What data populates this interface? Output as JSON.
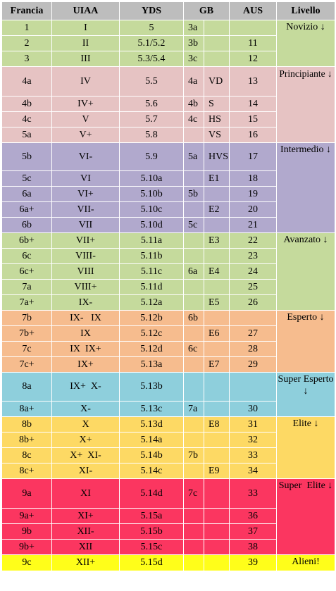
{
  "headers": [
    "Francia",
    "UIAA",
    "YDS",
    "GB",
    "",
    "AUS",
    "Livello"
  ],
  "colors": {
    "header": "#bdbdbd",
    "novizio": "#c5da9c",
    "principiante": "#e6c3c3",
    "intermedio": "#b1a9cd",
    "avanzato": "#c5da9c",
    "esperto": "#f6bc8e",
    "super_esperto": "#8ecfdc",
    "elite": "#fdd964",
    "super_elite": "#fb3660",
    "alieni": "#fffe1a"
  },
  "groups": [
    {
      "key": "novizio",
      "level": "Novizio ↓",
      "rows": [
        {
          "fr": "1",
          "uiaa": "I",
          "yds": "5",
          "gb": "3a",
          "gb2": "",
          "aus": ""
        },
        {
          "fr": "2",
          "uiaa": "II",
          "yds": "5.1/5.2",
          "gb": "3b",
          "gb2": "",
          "aus": "11"
        },
        {
          "fr": "3",
          "uiaa": "III",
          "yds": "5.3/5.4",
          "gb": "3c",
          "gb2": "",
          "aus": "12"
        }
      ]
    },
    {
      "key": "principiante",
      "level": "Principiante ↓",
      "rows": [
        {
          "fr": "4a",
          "uiaa": "IV",
          "yds": "5.5",
          "gb": "4a",
          "gb2": "VD",
          "aus": "13",
          "tall": true
        },
        {
          "fr": "4b",
          "uiaa": "IV+",
          "yds": "5.6",
          "gb": "4b",
          "gb2": "S",
          "aus": "14"
        },
        {
          "fr": "4c",
          "uiaa": "V",
          "yds": "5.7",
          "gb": "4c",
          "gb2": "HS",
          "aus": "15"
        },
        {
          "fr": "5a",
          "uiaa": "V+",
          "yds": "5.8",
          "gb": "",
          "gb2": "VS",
          "aus": "16"
        }
      ]
    },
    {
      "key": "intermedio",
      "level": "Intermedio ↓",
      "rows": [
        {
          "fr": "5b",
          "uiaa": "VI-",
          "yds": "5.9",
          "gb": "5a",
          "gb2": "HVS",
          "aus": "17",
          "tall": true
        },
        {
          "fr": "5c",
          "uiaa": "VI",
          "yds": "5.10a",
          "gb": "",
          "gb2": "E1",
          "aus": "18"
        },
        {
          "fr": "6a",
          "uiaa": "VI+",
          "yds": "5.10b",
          "gb": "5b",
          "gb2": "",
          "aus": "19"
        },
        {
          "fr": "6a+",
          "uiaa": "VII-",
          "yds": "5.10c",
          "gb": "",
          "gb2": "E2",
          "aus": "20"
        },
        {
          "fr": "6b",
          "uiaa": "VII",
          "yds": "5.10d",
          "gb": "5c",
          "gb2": "",
          "aus": "21"
        }
      ]
    },
    {
      "key": "avanzato",
      "level": "Avanzato ↓",
      "rows": [
        {
          "fr": "6b+",
          "uiaa": "VII+",
          "yds": "5.11a",
          "gb": "",
          "gb2": "E3",
          "aus": "22"
        },
        {
          "fr": "6c",
          "uiaa": "VIII-",
          "yds": "5.11b",
          "gb": "",
          "gb2": "",
          "aus": "23"
        },
        {
          "fr": "6c+",
          "uiaa": "VIII",
          "yds": "5.11c",
          "gb": "6a",
          "gb2": "E4",
          "aus": "24"
        },
        {
          "fr": "7a",
          "uiaa": "VIII+",
          "yds": "5.11d",
          "gb": "",
          "gb2": "",
          "aus": "25"
        },
        {
          "fr": "7a+",
          "uiaa": "IX-",
          "yds": "5.12a",
          "gb": "",
          "gb2": "E5",
          "aus": "26"
        }
      ]
    },
    {
      "key": "esperto",
      "level": "Esperto ↓",
      "rows": [
        {
          "fr": "7b",
          "uiaa": "IX-   IX",
          "yds": "5.12b",
          "gb": "6b",
          "gb2": "",
          "aus": ""
        },
        {
          "fr": "7b+",
          "uiaa": "IX",
          "yds": "5.12c",
          "gb": "",
          "gb2": "E6",
          "aus": "27"
        },
        {
          "fr": "7c",
          "uiaa": "IX  IX+",
          "yds": "5.12d",
          "gb": "6c",
          "gb2": "",
          "aus": "28"
        },
        {
          "fr": "7c+",
          "uiaa": "IX+",
          "yds": "5.13a",
          "gb": "",
          "gb2": "E7",
          "aus": "29"
        }
      ]
    },
    {
      "key": "super_esperto",
      "level": "Super Esperto ↓",
      "rows": [
        {
          "fr": "8a",
          "uiaa": "IX+  X-",
          "yds": "5.13b",
          "gb": "",
          "gb2": "",
          "aus": "",
          "tall": true
        },
        {
          "fr": "8a+",
          "uiaa": "X-",
          "yds": "5.13c",
          "gb": "7a",
          "gb2": "",
          "aus": "30"
        }
      ]
    },
    {
      "key": "elite",
      "level": "Elite ↓",
      "rows": [
        {
          "fr": "8b",
          "uiaa": "X",
          "yds": "5.13d",
          "gb": "",
          "gb2": "E8",
          "aus": "31"
        },
        {
          "fr": "8b+",
          "uiaa": "X+",
          "yds": "5.14a",
          "gb": "",
          "gb2": "",
          "aus": "32"
        },
        {
          "fr": "8c",
          "uiaa": "X+  XI-",
          "yds": "5.14b",
          "gb": "7b",
          "gb2": "",
          "aus": "33"
        },
        {
          "fr": "8c+",
          "uiaa": "XI-",
          "yds": "5.14c",
          "gb": "",
          "gb2": "E9",
          "aus": "34"
        }
      ]
    },
    {
      "key": "super_elite",
      "level": "Super  Elite ↓",
      "rows": [
        {
          "fr": "9a",
          "uiaa": "XI",
          "yds": "5.14d",
          "gb": "7c",
          "gb2": "",
          "aus": "33",
          "tall": true
        },
        {
          "fr": "9a+",
          "uiaa": "XI+",
          "yds": "5.15a",
          "gb": "",
          "gb2": "",
          "aus": "36"
        },
        {
          "fr": "9b",
          "uiaa": "XII-",
          "yds": "5.15b",
          "gb": "",
          "gb2": "",
          "aus": "37"
        },
        {
          "fr": "9b+",
          "uiaa": "XII",
          "yds": "5.15c",
          "gb": "",
          "gb2": "",
          "aus": "38"
        }
      ]
    },
    {
      "key": "alieni",
      "level": "Alieni!",
      "rows": [
        {
          "fr": "9c",
          "uiaa": "XII+",
          "yds": "5.15d",
          "gb": "",
          "gb2": "",
          "aus": "39"
        }
      ]
    }
  ]
}
